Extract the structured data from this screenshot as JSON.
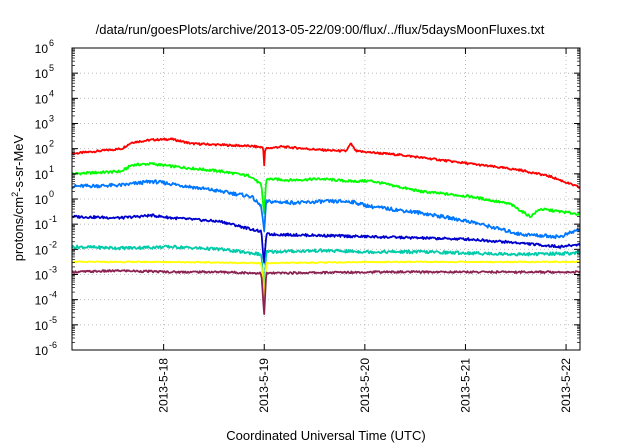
{
  "chart_data": {
    "type": "line",
    "title": "/data/run/goesPlots/archive/2013-05-22/09:00/flux/../flux/5daysMoonFluxes.txt",
    "xlabel": "Coordinated Universal Time (UTC)",
    "ylabel": {
      "prefix": "protons/cm",
      "sup": "2",
      "suffix": "-s-sr-MeV"
    },
    "yscale": "log",
    "ylim_exponents": [
      -6,
      6
    ],
    "ytick_exponents": [
      -6,
      -5,
      -4,
      -3,
      -2,
      -1,
      0,
      1,
      2,
      3,
      4,
      5,
      6
    ],
    "ytick_base": "10",
    "xlim_days": [
      0,
      5.1
    ],
    "xticks": [
      {
        "day": 0.92,
        "label": "2013-5-18"
      },
      {
        "day": 1.93,
        "label": "2013-5-19"
      },
      {
        "day": 2.94,
        "label": "2013-5-20"
      },
      {
        "day": 3.95,
        "label": "2013-5-21"
      },
      {
        "day": 4.96,
        "label": "2013-5-22"
      }
    ],
    "grid": true,
    "series": [
      {
        "color": "#ff0000",
        "noise": 0.04,
        "points": [
          [
            0,
            1.8
          ],
          [
            0.5,
            2.0
          ],
          [
            0.6,
            2.25
          ],
          [
            0.8,
            2.35
          ],
          [
            1.0,
            2.38
          ],
          [
            1.2,
            2.2
          ],
          [
            1.5,
            2.15
          ],
          [
            1.8,
            2.1
          ],
          [
            1.92,
            2.05
          ],
          [
            1.93,
            1.3
          ],
          [
            1.94,
            2.0
          ],
          [
            2.1,
            2.08
          ],
          [
            2.5,
            1.95
          ],
          [
            2.75,
            1.9
          ],
          [
            2.8,
            2.2
          ],
          [
            2.85,
            1.9
          ],
          [
            3.3,
            1.75
          ],
          [
            3.7,
            1.55
          ],
          [
            4.0,
            1.4
          ],
          [
            4.5,
            1.15
          ],
          [
            4.8,
            0.9
          ],
          [
            5.1,
            0.45
          ]
        ]
      },
      {
        "color": "#00ff00",
        "noise": 0.05,
        "points": [
          [
            0,
            1.0
          ],
          [
            0.5,
            1.1
          ],
          [
            0.6,
            1.35
          ],
          [
            0.8,
            1.4
          ],
          [
            1.0,
            1.3
          ],
          [
            1.5,
            1.1
          ],
          [
            1.8,
            0.9
          ],
          [
            1.9,
            0.55
          ],
          [
            1.93,
            -0.6
          ],
          [
            1.95,
            0.8
          ],
          [
            2.2,
            0.75
          ],
          [
            2.5,
            0.8
          ],
          [
            2.8,
            0.7
          ],
          [
            3.0,
            0.72
          ],
          [
            3.5,
            0.3
          ],
          [
            4.0,
            0.1
          ],
          [
            4.4,
            -0.2
          ],
          [
            4.6,
            -0.7
          ],
          [
            4.7,
            -0.4
          ],
          [
            5.1,
            -0.6
          ]
        ]
      },
      {
        "color": "#0077ff",
        "noise": 0.07,
        "points": [
          [
            0,
            0.5
          ],
          [
            0.5,
            0.55
          ],
          [
            0.8,
            0.7
          ],
          [
            1.0,
            0.6
          ],
          [
            1.5,
            0.3
          ],
          [
            1.8,
            0.1
          ],
          [
            1.9,
            -0.3
          ],
          [
            1.93,
            -1.3
          ],
          [
            1.95,
            -0.1
          ],
          [
            2.3,
            -0.15
          ],
          [
            2.5,
            -0.1
          ],
          [
            2.8,
            -0.1
          ],
          [
            3.0,
            -0.3
          ],
          [
            3.5,
            -0.55
          ],
          [
            4.0,
            -0.9
          ],
          [
            4.5,
            -1.4
          ],
          [
            4.9,
            -1.5
          ],
          [
            5.1,
            -1.2
          ]
        ]
      },
      {
        "color": "#0000cc",
        "noise": 0.05,
        "points": [
          [
            0,
            -0.7
          ],
          [
            0.5,
            -0.75
          ],
          [
            0.8,
            -0.65
          ],
          [
            1.0,
            -0.75
          ],
          [
            1.5,
            -0.9
          ],
          [
            1.9,
            -1.3
          ],
          [
            1.93,
            -2.6
          ],
          [
            1.95,
            -1.4
          ],
          [
            2.5,
            -1.45
          ],
          [
            3.0,
            -1.5
          ],
          [
            3.5,
            -1.55
          ],
          [
            4.0,
            -1.6
          ],
          [
            4.5,
            -1.75
          ],
          [
            4.9,
            -1.9
          ],
          [
            5.1,
            -1.8
          ]
        ]
      },
      {
        "color": "#00ccaa",
        "noise": 0.06,
        "points": [
          [
            0,
            -1.9
          ],
          [
            0.5,
            -1.95
          ],
          [
            1.0,
            -1.9
          ],
          [
            1.5,
            -2.0
          ],
          [
            1.9,
            -2.2
          ],
          [
            1.93,
            -3.8
          ],
          [
            1.95,
            -2.1
          ],
          [
            2.5,
            -2.05
          ],
          [
            3.0,
            -2.1
          ],
          [
            3.5,
            -2.1
          ],
          [
            4.0,
            -2.15
          ],
          [
            4.5,
            -2.2
          ],
          [
            5.1,
            -2.15
          ]
        ]
      },
      {
        "color": "#ffff00",
        "noise": 0.02,
        "points": [
          [
            0,
            -2.5
          ],
          [
            1.0,
            -2.5
          ],
          [
            1.9,
            -2.55
          ],
          [
            1.93,
            -4.0
          ],
          [
            1.95,
            -2.55
          ],
          [
            3.0,
            -2.5
          ],
          [
            4.0,
            -2.5
          ],
          [
            5.1,
            -2.5
          ]
        ]
      },
      {
        "color": "#8b2252",
        "noise": 0.04,
        "points": [
          [
            0,
            -2.9
          ],
          [
            0.5,
            -2.85
          ],
          [
            1.0,
            -2.9
          ],
          [
            1.5,
            -2.9
          ],
          [
            1.9,
            -2.95
          ],
          [
            1.93,
            -4.6
          ],
          [
            1.95,
            -2.95
          ],
          [
            3.0,
            -2.9
          ],
          [
            4.0,
            -2.9
          ],
          [
            5.1,
            -2.9
          ]
        ]
      }
    ]
  }
}
